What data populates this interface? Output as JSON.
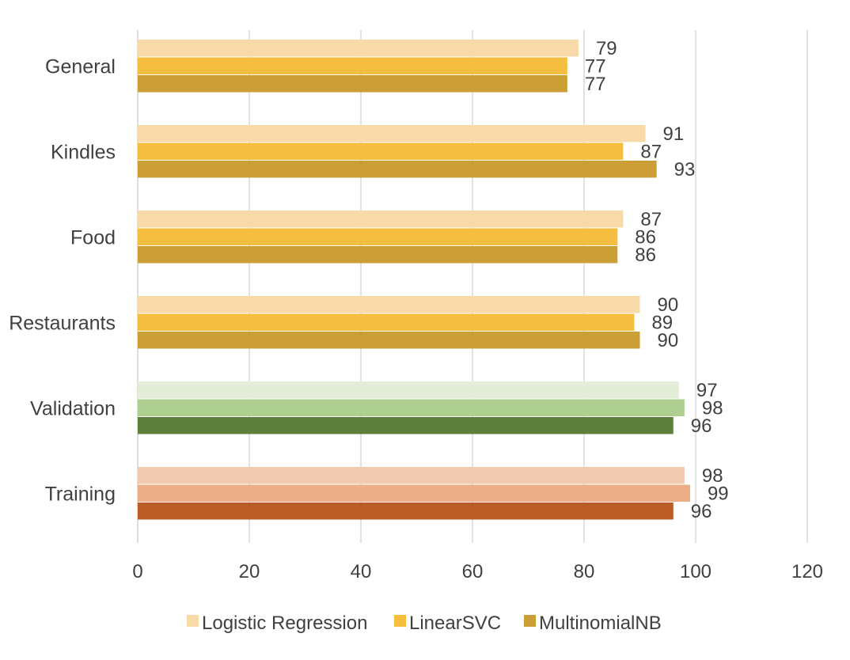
{
  "chart_data": {
    "type": "bar",
    "orientation": "horizontal",
    "categories": [
      "General",
      "Kindles",
      "Food",
      "Restaurants",
      "Validation",
      "Training"
    ],
    "series": [
      {
        "name": "Logistic Regression",
        "values": [
          79,
          91,
          87,
          90,
          97,
          98
        ],
        "color": "#F8D9A8",
        "point_colors": [
          "#F8D9A8",
          "#F8D9A8",
          "#F8D9A8",
          "#F8D9A8",
          "#E3EDD8",
          "#F0CBB0"
        ]
      },
      {
        "name": "LinearSVC",
        "values": [
          77,
          87,
          86,
          89,
          98,
          99
        ],
        "color": "#F5BE40",
        "point_colors": [
          "#F5BE40",
          "#F5BE40",
          "#F5BE40",
          "#F5BE40",
          "#AFCF91",
          "#EBAE86"
        ]
      },
      {
        "name": "MultinomialNB",
        "values": [
          77,
          93,
          86,
          90,
          96,
          96
        ],
        "color": "#CC9F36",
        "point_colors": [
          "#CC9F36",
          "#CC9F36",
          "#CC9F36",
          "#CC9F36",
          "#5E803C",
          "#B95C26"
        ]
      }
    ],
    "xlim": [
      0,
      120
    ],
    "xticks": [
      "0",
      "20",
      "40",
      "60",
      "80",
      "100",
      "120"
    ],
    "grid": true,
    "legend_position": "bottom",
    "data_labels": true,
    "colors": {
      "grid": "#D9D9D9",
      "text": "#404040"
    }
  }
}
